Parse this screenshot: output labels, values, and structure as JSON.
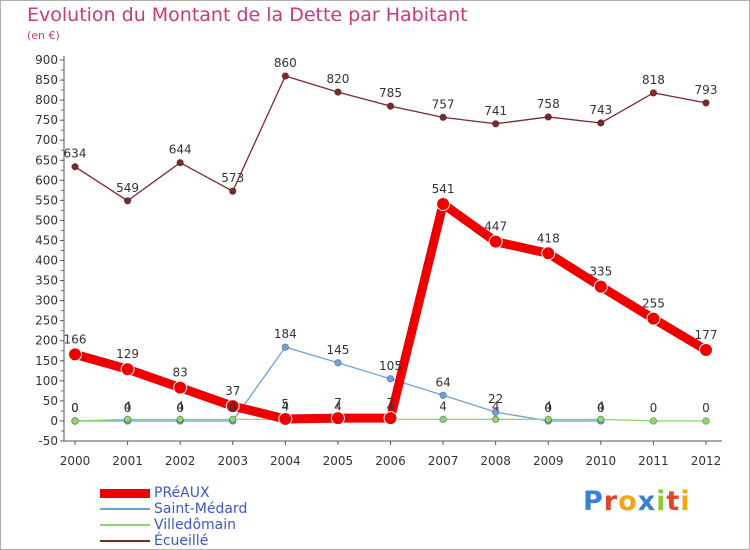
{
  "title": "Evolution du Montant de la Dette par Habitant",
  "subtitle": "(en €)",
  "logo": {
    "text": "Proxiti",
    "colors": [
      "#3b7fd4",
      "#e0452b",
      "#f2a516",
      "#3b7fd4",
      "#8fc832",
      "#e0452b",
      "#f2a516"
    ]
  },
  "chart_data": {
    "type": "line",
    "categories": [
      "2000",
      "2001",
      "2002",
      "2003",
      "2004",
      "2005",
      "2006",
      "2007",
      "2008",
      "2009",
      "2010",
      "2011",
      "2012"
    ],
    "ylim": [
      -50,
      900
    ],
    "yticks": [
      -50,
      0,
      50,
      100,
      150,
      200,
      250,
      300,
      350,
      400,
      450,
      500,
      550,
      600,
      650,
      700,
      750,
      800,
      850,
      900
    ],
    "grid": false,
    "legend_position": "bottom-left",
    "series": [
      {
        "name": "PRéAUX",
        "color": "#ee0000",
        "values": [
          166,
          129,
          83,
          37,
          5,
          7,
          7,
          541,
          447,
          418,
          335,
          255,
          177
        ],
        "labels": [
          "166",
          "129",
          "83",
          "37",
          "5",
          "7",
          "7",
          "541",
          "447",
          "418",
          "335",
          "255",
          "177"
        ],
        "strong": true
      },
      {
        "name": "Saint-Médard",
        "color": "#6fa3d8",
        "values": [
          0,
          0,
          0,
          0,
          184,
          145,
          105,
          64,
          22,
          0,
          0,
          null,
          null
        ],
        "labels": [
          "0",
          "0",
          "0",
          "0",
          "184",
          "145",
          "105",
          "64",
          "22",
          "0",
          "0",
          "",
          ""
        ],
        "strong": false
      },
      {
        "name": "Villedômain",
        "color": "#8fd66a",
        "values": [
          0,
          4,
          4,
          4,
          4,
          4,
          4,
          4,
          4,
          4,
          4,
          0,
          0
        ],
        "labels": [
          "0",
          "4",
          "4",
          "4",
          "4",
          "4",
          "4",
          "4",
          "4",
          "4",
          "4",
          "0",
          "0"
        ],
        "strong": false
      },
      {
        "name": "Écueillé",
        "color": "#7a2a2a",
        "values": [
          634,
          549,
          644,
          573,
          860,
          820,
          785,
          757,
          741,
          758,
          743,
          818,
          793
        ],
        "labels": [
          "634",
          "549",
          "644",
          "573",
          "860",
          "820",
          "785",
          "757",
          "741",
          "758",
          "743",
          "818",
          "793"
        ],
        "strong": false
      }
    ]
  }
}
